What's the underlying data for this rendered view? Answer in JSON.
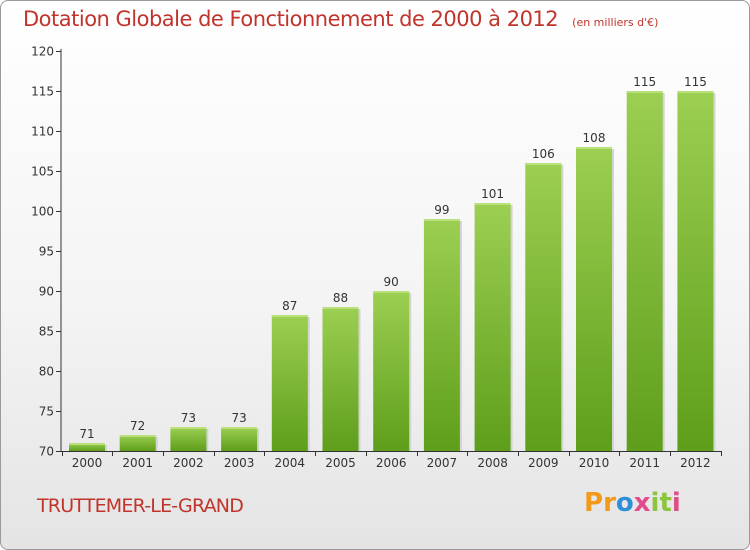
{
  "chart_data": {
    "type": "bar",
    "title": "Dotation Globale de Fonctionnement de 2000 à 2012",
    "unit_note": "(en milliers d'€)",
    "categories": [
      "2000",
      "2001",
      "2002",
      "2003",
      "2004",
      "2005",
      "2006",
      "2007",
      "2008",
      "2009",
      "2010",
      "2011",
      "2012"
    ],
    "values": [
      71,
      72,
      73,
      73,
      87,
      88,
      90,
      99,
      101,
      106,
      108,
      115,
      115
    ],
    "value_labels": [
      "71",
      "72",
      "73",
      "73",
      "87",
      "88",
      "90",
      "99",
      "101",
      "106",
      "108",
      "115",
      "115"
    ],
    "ylim": [
      70,
      120
    ],
    "yticks": [
      70,
      75,
      80,
      85,
      90,
      95,
      100,
      105,
      110,
      115,
      120
    ],
    "xlabel": "",
    "ylabel": "",
    "grid": false,
    "legend": "none",
    "bar_color_top": "#9ccf52",
    "bar_color_bottom": "#5e9e1b"
  },
  "commune": "TRUTTEMER-LE-GRAND",
  "logo": {
    "letters": [
      "P",
      "r",
      "o",
      "x",
      "i",
      "t",
      "i"
    ],
    "colors": [
      "#f29b1a",
      "#f29b1a",
      "#2e8fd6",
      "#e24b8c",
      "#8cc63e",
      "#8cc63e",
      "#e24b8c"
    ]
  },
  "colors": {
    "title": "#c1342c",
    "axis": "#333333"
  }
}
